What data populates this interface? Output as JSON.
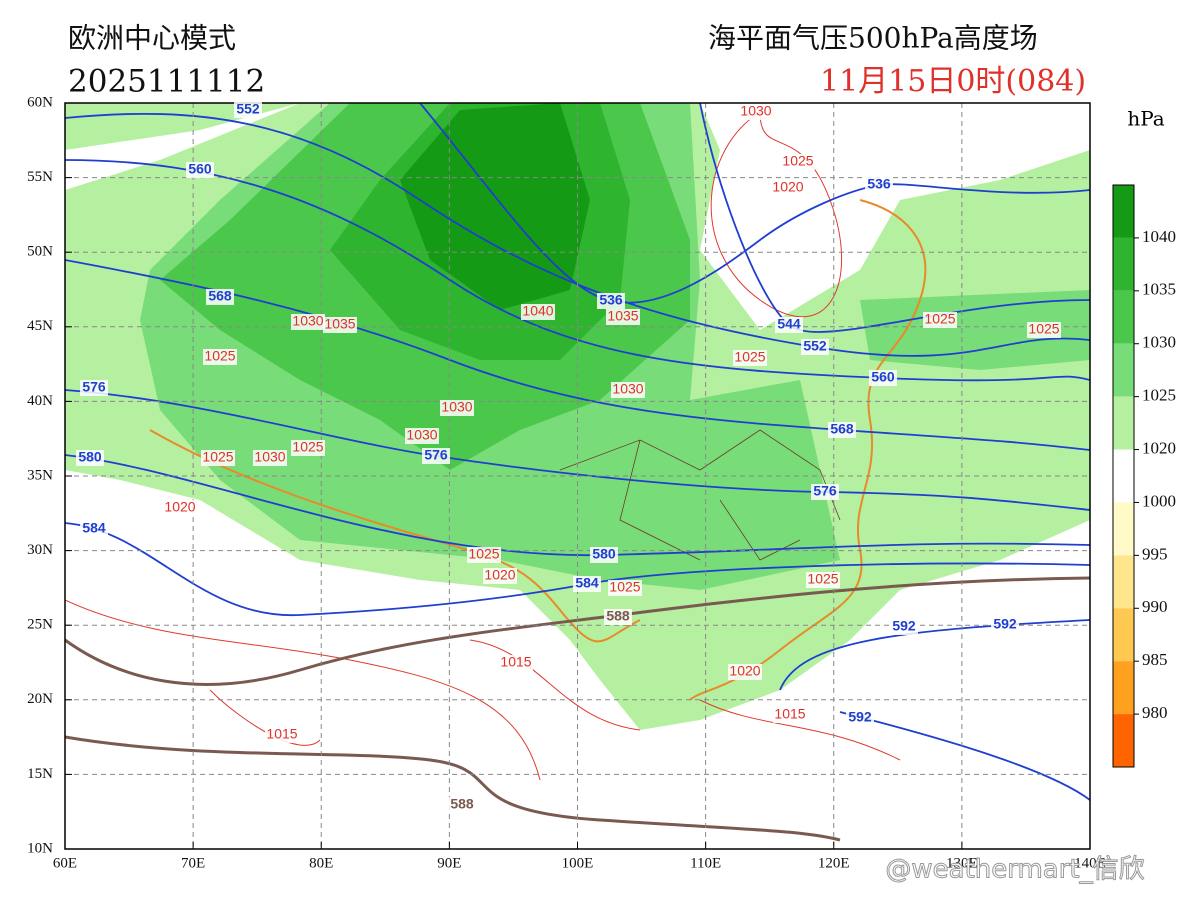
{
  "header": {
    "model": "欧洲中心模式",
    "run": "2025111112",
    "fields": "海平面气压500hPa高度场",
    "valid_time": "11月15日0时(084)"
  },
  "axes": {
    "lon_labels": [
      "60E",
      "70E",
      "80E",
      "90E",
      "100E",
      "110E",
      "120E",
      "130E",
      "140E"
    ],
    "lat_labels": [
      "60N",
      "55N",
      "50N",
      "45N",
      "40N",
      "35N",
      "30N",
      "25N",
      "20N",
      "15N",
      "10N"
    ]
  },
  "colorbar": {
    "unit": "hPa",
    "labels": [
      "1040",
      "1035",
      "1030",
      "1025",
      "1020",
      "1000",
      "995",
      "990",
      "985",
      "980"
    ]
  },
  "contour_labels": {
    "pressure": [
      "1030",
      "1025",
      "1020",
      "1040",
      "1035",
      "1035",
      "1030",
      "1025",
      "1025",
      "1030",
      "1030",
      "1030",
      "1025",
      "1025",
      "1030",
      "1020",
      "1025",
      "1020",
      "1025",
      "1025",
      "1015",
      "1020",
      "1015",
      "1015",
      "1025",
      "1025"
    ],
    "height": [
      "552",
      "560",
      "568",
      "536",
      "536",
      "544",
      "552",
      "560",
      "568",
      "576",
      "576",
      "576",
      "580",
      "580",
      "584",
      "584",
      "588",
      "588",
      "592",
      "592",
      "592"
    ]
  },
  "watermark": "@weathermart_信欣"
}
